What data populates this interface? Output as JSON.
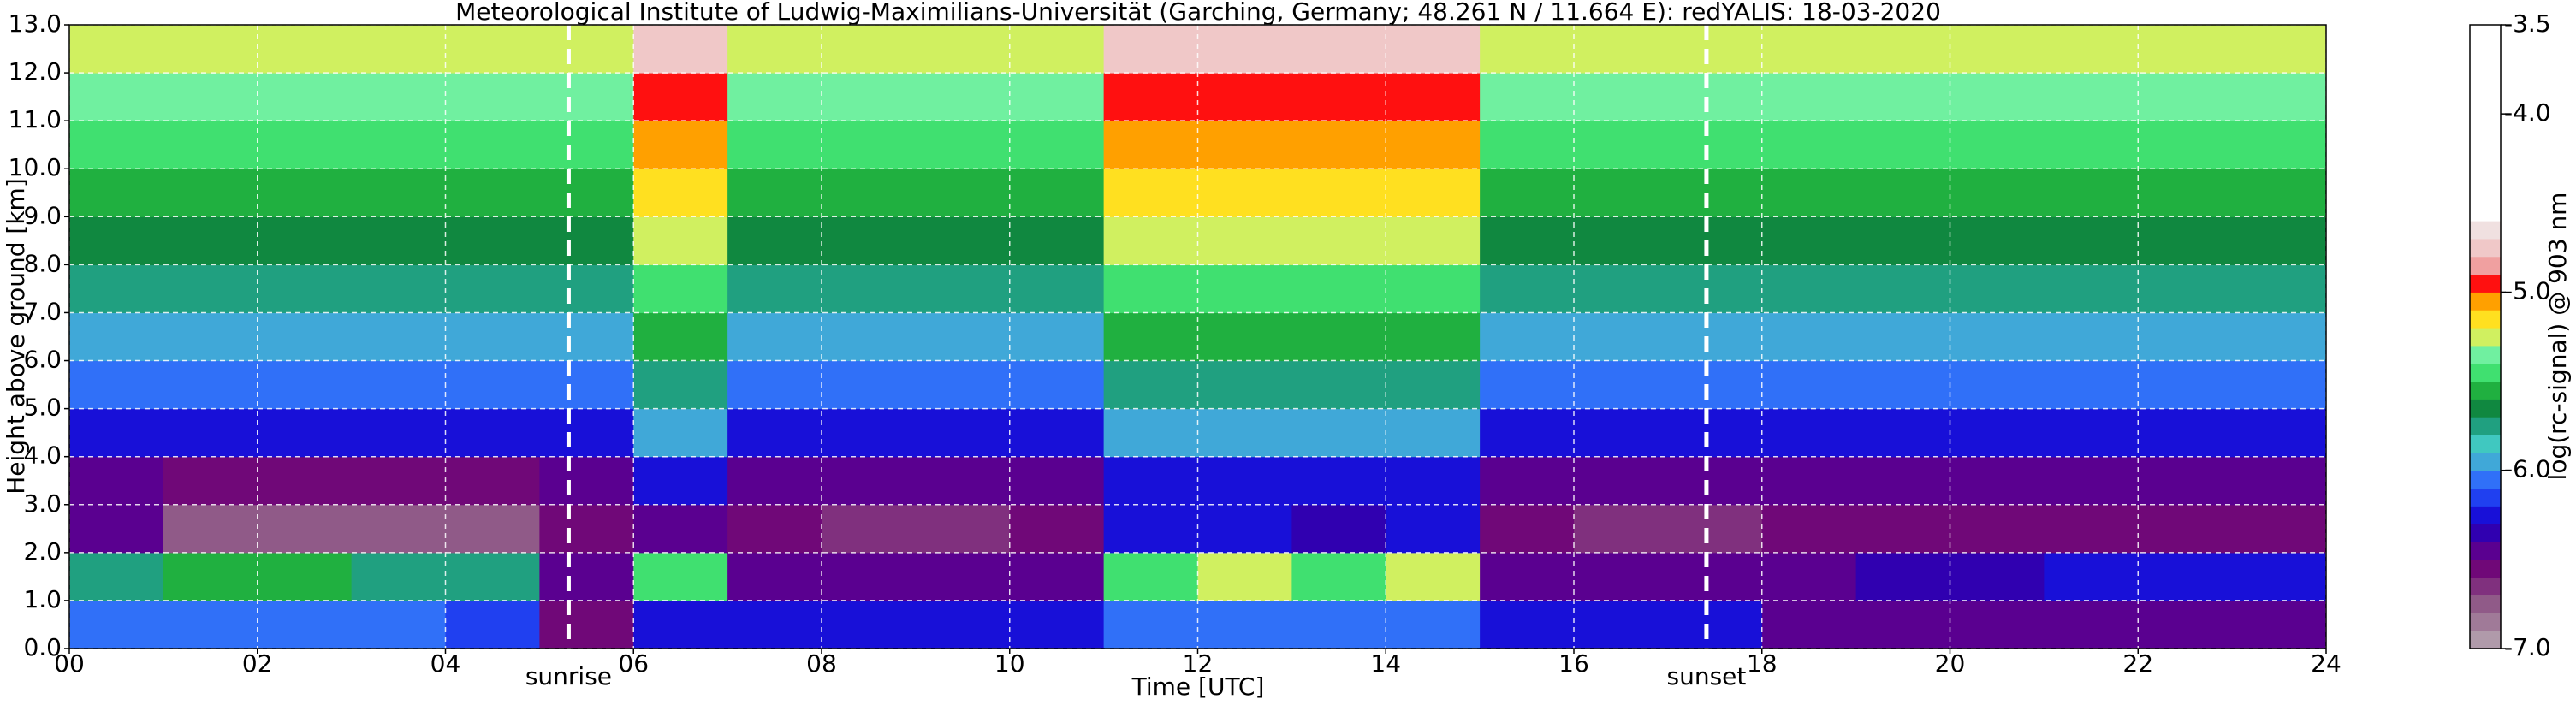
{
  "chart_data": {
    "type": "heatmap",
    "title": "Meteorological Institute of Ludwig-Maximilians-Universität (Garching, Germany; 48.261 N / 11.664 E):    redYALIS: 18-03-2020",
    "xlabel": "Time [UTC]",
    "ylabel": "Height above ground [km]",
    "x": [
      0,
      1,
      2,
      3,
      4,
      5,
      6,
      7,
      8,
      9,
      10,
      11,
      12,
      13,
      14,
      15,
      16,
      17,
      18,
      19,
      20,
      21,
      22,
      23,
      24
    ],
    "y": [
      0,
      1,
      2,
      3,
      4,
      5,
      6,
      7,
      8,
      9,
      10,
      11,
      12,
      13
    ],
    "z": [
      [
        -6.1,
        -6.1,
        -6.1,
        -6.1,
        -6.15,
        -6.6,
        -6.2,
        -6.2,
        -6.25,
        -6.25,
        -6.2,
        -6.1,
        -6.1,
        -6.1,
        -6.1,
        -6.2,
        -6.2,
        -6.3,
        -6.4,
        -6.4,
        -6.4,
        -6.4,
        -6.4,
        -6.4
      ],
      [
        -5.8,
        -5.6,
        -5.6,
        -5.7,
        -5.8,
        -6.5,
        -5.4,
        -6.45,
        -6.5,
        -6.5,
        -6.45,
        -5.5,
        -5.3,
        -5.4,
        -5.3,
        -6.4,
        -6.45,
        -6.5,
        -6.4,
        -6.35,
        -6.35,
        -6.3,
        -6.3,
        -6.3
      ],
      [
        -6.5,
        -6.8,
        -6.8,
        -6.75,
        -6.7,
        -6.6,
        -6.5,
        -6.6,
        -6.65,
        -6.65,
        -6.6,
        -6.3,
        -6.3,
        -6.35,
        -6.3,
        -6.6,
        -6.65,
        -6.65,
        -6.6,
        -6.6,
        -6.6,
        -6.6,
        -6.6,
        -6.6
      ],
      [
        -6.5,
        -6.6,
        -6.6,
        -6.6,
        -6.55,
        -6.5,
        -6.3,
        -6.45,
        -6.5,
        -6.5,
        -6.5,
        -6.2,
        -6.2,
        -6.3,
        -6.2,
        -6.5,
        -6.5,
        -6.5,
        -6.45,
        -6.45,
        -6.45,
        -6.45,
        -6.45,
        -6.45
      ],
      [
        -6.3,
        -6.3,
        -6.3,
        -6.3,
        -6.3,
        -6.3,
        -6.0,
        -6.3,
        -6.3,
        -6.3,
        -6.3,
        -6.0,
        -6.0,
        -6.0,
        -6.0,
        -6.3,
        -6.3,
        -6.3,
        -6.3,
        -6.3,
        -6.3,
        -6.3,
        -6.3,
        -6.3
      ],
      [
        -6.1,
        -6.1,
        -6.1,
        -6.1,
        -6.1,
        -6.1,
        -5.8,
        -6.1,
        -6.1,
        -6.1,
        -6.1,
        -5.8,
        -5.8,
        -5.8,
        -5.8,
        -6.1,
        -6.1,
        -6.1,
        -6.1,
        -6.1,
        -6.1,
        -6.1,
        -6.1,
        -6.1
      ],
      [
        -5.9,
        -5.9,
        -5.9,
        -5.9,
        -5.9,
        -5.9,
        -5.6,
        -5.9,
        -5.9,
        -5.9,
        -5.9,
        -5.6,
        -5.6,
        -5.6,
        -5.6,
        -5.9,
        -5.9,
        -5.9,
        -5.9,
        -5.9,
        -5.9,
        -5.9,
        -5.9,
        -5.9
      ],
      [
        -5.75,
        -5.75,
        -5.75,
        -5.75,
        -5.75,
        -5.75,
        -5.4,
        -5.75,
        -5.75,
        -5.75,
        -5.75,
        -5.4,
        -5.4,
        -5.4,
        -5.4,
        -5.75,
        -5.75,
        -5.75,
        -5.75,
        -5.75,
        -5.75,
        -5.75,
        -5.75,
        -5.75
      ],
      [
        -5.65,
        -5.65,
        -5.65,
        -5.65,
        -5.65,
        -5.65,
        -5.3,
        -5.65,
        -5.65,
        -5.65,
        -5.65,
        -5.3,
        -5.3,
        -5.3,
        -5.3,
        -5.65,
        -5.65,
        -5.65,
        -5.65,
        -5.65,
        -5.65,
        -5.65,
        -5.65,
        -5.65
      ],
      [
        -5.55,
        -5.55,
        -5.55,
        -5.55,
        -5.55,
        -5.55,
        -5.2,
        -5.55,
        -5.55,
        -5.55,
        -5.55,
        -5.2,
        -5.2,
        -5.2,
        -5.2,
        -5.55,
        -5.55,
        -5.55,
        -5.55,
        -5.55,
        -5.55,
        -5.55,
        -5.55,
        -5.55
      ],
      [
        -5.45,
        -5.45,
        -5.45,
        -5.45,
        -5.45,
        -5.45,
        -5.1,
        -5.45,
        -5.45,
        -5.45,
        -5.45,
        -5.1,
        -5.1,
        -5.1,
        -5.1,
        -5.45,
        -5.45,
        -5.45,
        -5.45,
        -5.45,
        -5.45,
        -5.45,
        -5.45,
        -5.45
      ],
      [
        -5.35,
        -5.35,
        -5.35,
        -5.35,
        -5.35,
        -5.35,
        -4.9,
        -5.35,
        -5.35,
        -5.35,
        -5.35,
        -4.9,
        -4.9,
        -4.9,
        -4.9,
        -5.35,
        -5.35,
        -5.35,
        -5.35,
        -5.35,
        -5.35,
        -5.35,
        -5.35,
        -5.35
      ],
      [
        -5.25,
        -5.25,
        -5.25,
        -5.25,
        -5.25,
        -5.25,
        -4.8,
        -5.25,
        -5.25,
        -5.25,
        -5.25,
        -4.8,
        -4.8,
        -4.8,
        -4.8,
        -5.25,
        -5.25,
        -5.25,
        -5.25,
        -5.25,
        -5.25,
        -5.25,
        -5.25,
        -5.25
      ]
    ],
    "xlim": [
      0,
      24
    ],
    "ylim": [
      0,
      13
    ],
    "xticks": [
      {
        "value": 0,
        "label": "00"
      },
      {
        "value": 2,
        "label": "02"
      },
      {
        "value": 4,
        "label": "04"
      },
      {
        "value": 6,
        "label": "06"
      },
      {
        "value": 8,
        "label": "08"
      },
      {
        "value": 10,
        "label": "10"
      },
      {
        "value": 12,
        "label": "12"
      },
      {
        "value": 14,
        "label": "14"
      },
      {
        "value": 16,
        "label": "16"
      },
      {
        "value": 18,
        "label": "18"
      },
      {
        "value": 20,
        "label": "20"
      },
      {
        "value": 22,
        "label": "22"
      },
      {
        "value": 24,
        "label": "24"
      }
    ],
    "yticks": [
      {
        "value": 0,
        "label": "0.0"
      },
      {
        "value": 1,
        "label": "1.0"
      },
      {
        "value": 2,
        "label": "2.0"
      },
      {
        "value": 3,
        "label": "3.0"
      },
      {
        "value": 4,
        "label": "4.0"
      },
      {
        "value": 5,
        "label": "5.0"
      },
      {
        "value": 6,
        "label": "6.0"
      },
      {
        "value": 7,
        "label": "7.0"
      },
      {
        "value": 8,
        "label": "8.0"
      },
      {
        "value": 9,
        "label": "9.0"
      },
      {
        "value": 10,
        "label": "10.0"
      },
      {
        "value": 11,
        "label": "11.0"
      },
      {
        "value": 12,
        "label": "12.0"
      },
      {
        "value": 13,
        "label": "13.0"
      }
    ],
    "grid": true,
    "annotations": [
      {
        "text": "sunrise",
        "x": 5.31
      },
      {
        "text": "sunset",
        "x": 17.41
      }
    ],
    "colorbar_label": "log(rc-signal) @ 903 nm",
    "clim": [
      -7,
      -3.5
    ],
    "cticks": [
      -3.5,
      {
        "value": -4,
        "label": "-4.0"
      },
      {
        "value": -5,
        "label": "-5.0"
      },
      {
        "value": -6,
        "label": "-6.0"
      },
      {
        "value": -7,
        "label": "-7.0"
      }
    ],
    "colormap": [
      "#b09aaa",
      "#a07a98",
      "#905a88",
      "#80307e",
      "#700878",
      "#5a0090",
      "#3000b0",
      "#1810d8",
      "#2040f0",
      "#3070f8",
      "#40a8d8",
      "#40c8c0",
      "#20a080",
      "#108840",
      "#20b040",
      "#40e070",
      "#70f0a0",
      "#d0f060",
      "#ffe020",
      "#ffa000",
      "#ff1010",
      "#f0a0a0",
      "#f0c8c8",
      "#f0e0e0",
      "#ffffff",
      "#ffffff",
      "#ffffff",
      "#ffffff",
      "#ffffff",
      "#ffffff",
      "#ffffff",
      "#ffffff",
      "#ffffff",
      "#ffffff",
      "#ffffff"
    ]
  }
}
